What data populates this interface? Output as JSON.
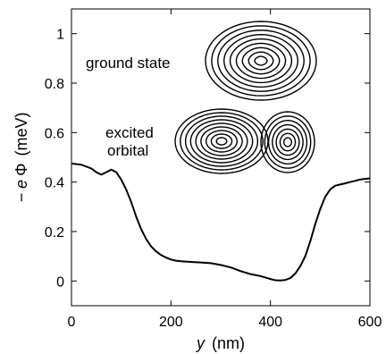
{
  "chart_data": {
    "type": "line",
    "title": "",
    "xlabel": {
      "var": "y",
      "unit": "(nm)"
    },
    "ylabel": {
      "prefix": "− e",
      "sym": "Φ",
      "unit": "(meV)"
    },
    "xlim": [
      0,
      600
    ],
    "ylim": [
      -0.1,
      1.1
    ],
    "xticks": [
      0,
      200,
      400,
      600
    ],
    "yticks": [
      0,
      0.2,
      0.4,
      0.6,
      0.8,
      1
    ],
    "ytick_labels": [
      "0",
      "0.2",
      "0.4",
      "0.6",
      "0.8",
      "1"
    ],
    "grid": false,
    "legend": "none",
    "series": [
      {
        "x": [
          0,
          20,
          40,
          50,
          60,
          70,
          80,
          90,
          100,
          110,
          120,
          130,
          140,
          150,
          160,
          170,
          180,
          190,
          200,
          210,
          220,
          240,
          260,
          280,
          300,
          320,
          340,
          360,
          380,
          400,
          410,
          420,
          430,
          440,
          450,
          460,
          470,
          480,
          490,
          500,
          510,
          520,
          530,
          540,
          550,
          560,
          570,
          580,
          590,
          600
        ],
        "y": [
          0.475,
          0.47,
          0.455,
          0.44,
          0.43,
          0.44,
          0.45,
          0.44,
          0.41,
          0.37,
          0.32,
          0.26,
          0.21,
          0.17,
          0.14,
          0.12,
          0.105,
          0.095,
          0.087,
          0.082,
          0.08,
          0.077,
          0.075,
          0.072,
          0.065,
          0.055,
          0.04,
          0.028,
          0.02,
          0.008,
          0.003,
          0.002,
          0.004,
          0.012,
          0.03,
          0.06,
          0.1,
          0.16,
          0.23,
          0.29,
          0.34,
          0.37,
          0.385,
          0.39,
          0.395,
          0.4,
          0.405,
          0.41,
          0.413,
          0.415
        ]
      }
    ],
    "annotations": [
      {
        "text": "ground state"
      },
      {
        "text": "excited"
      },
      {
        "text": "orbital"
      }
    ]
  }
}
